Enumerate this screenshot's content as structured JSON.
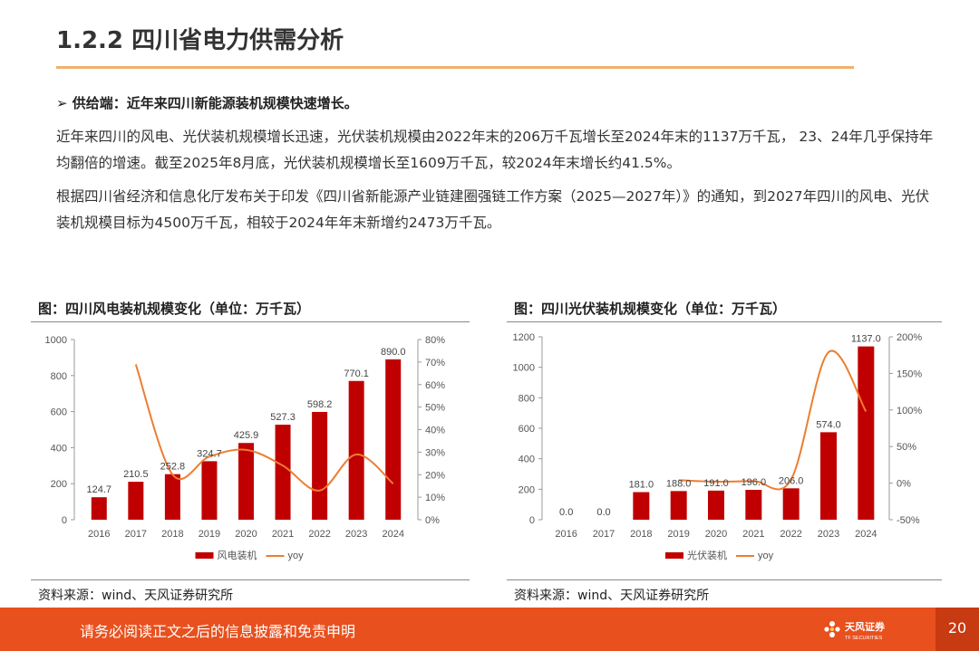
{
  "header": {
    "title": "1.2.2 四川省电力供需分析"
  },
  "bullet": {
    "label": "➢ 供给端：近年来四川新能源装机规模快速增长。"
  },
  "paragraphs": {
    "p1": "近年来四川的风电、光伏装机规模增长迅速，光伏装机规模由2022年末的206万千瓦增长至2024年末的1137万千瓦， 23、24年几乎保持年均翻倍的增速。截至2025年8月底，光伏装机规模增长至1609万千瓦，较2024年末增长约41.5%。",
    "p2": "根据四川省经济和信息化厅发布关于印发《四川省新能源产业链建圈强链工作方案（2025—2027年）》的通知，到2027年四川的风电、光伏装机规模目标为4500万千瓦，相较于2024年年末新增约2473万千瓦。"
  },
  "figures": {
    "left": {
      "title": "图：四川风电装机规模变化（单位：万千瓦）",
      "source": "资料来源：wind、天风证券研究所"
    },
    "right": {
      "title": "图：四川光伏装机规模变化（单位：万千瓦）",
      "source": "资料来源：wind、天风证券研究所"
    }
  },
  "footer": {
    "disclaimer": "请务必阅读正文之后的信息披露和免责申明",
    "logo_text": "天风证券",
    "logo_sub": "TF SECURITIES",
    "page_number": "20"
  },
  "colors": {
    "bar": "#c00000",
    "line": "#ed7d31",
    "footer": "#e8501e",
    "rule": "#f0b06e"
  },
  "chart_data": [
    {
      "type": "bar",
      "categories": [
        "2016",
        "2017",
        "2018",
        "2019",
        "2020",
        "2021",
        "2022",
        "2023",
        "2024"
      ],
      "series": [
        {
          "name": "风电装机",
          "type": "bar",
          "axis": "left",
          "values": [
            124.7,
            210.5,
            252.8,
            324.7,
            425.9,
            527.3,
            598.2,
            770.1,
            890.0
          ],
          "labels": [
            "124.7",
            "210.5",
            "252.8",
            "324.7",
            "425.9",
            "527.3",
            "598.2",
            "770.1",
            "890.0"
          ]
        },
        {
          "name": "yoy",
          "type": "line",
          "axis": "right",
          "values": [
            null,
            0.69,
            0.2,
            0.28,
            0.31,
            0.24,
            0.13,
            0.29,
            0.16
          ]
        }
      ],
      "ylim": [
        0,
        1000
      ],
      "yticks": [
        "0",
        "200",
        "400",
        "600",
        "800",
        "1000"
      ],
      "y2lim": [
        0,
        0.8
      ],
      "y2ticks": [
        "0%",
        "10%",
        "20%",
        "30%",
        "40%",
        "50%",
        "60%",
        "70%",
        "80%"
      ],
      "legend": "bottom"
    },
    {
      "type": "bar",
      "categories": [
        "2016",
        "2017",
        "2018",
        "2019",
        "2020",
        "2021",
        "2022",
        "2023",
        "2024"
      ],
      "series": [
        {
          "name": "光伏装机",
          "type": "bar",
          "axis": "left",
          "values": [
            0,
            0,
            181,
            188,
            191,
            196,
            206,
            574,
            1137
          ],
          "labels": [
            "0.0",
            "0.0",
            "181.0",
            "188.0",
            "191.0",
            "196.0",
            "206.0",
            "574.0",
            "1137.0"
          ]
        },
        {
          "name": "yoy",
          "type": "line",
          "axis": "right",
          "values": [
            null,
            null,
            null,
            0.04,
            0.02,
            0.03,
            0.05,
            1.79,
            0.98
          ]
        }
      ],
      "ylim": [
        0,
        1200
      ],
      "yticks": [
        "0",
        "200",
        "400",
        "600",
        "800",
        "1000",
        "1200"
      ],
      "y2lim": [
        -0.5,
        2.0
      ],
      "y2ticks": [
        "-50%",
        "0%",
        "50%",
        "100%",
        "150%",
        "200%"
      ],
      "legend": "bottom"
    }
  ]
}
